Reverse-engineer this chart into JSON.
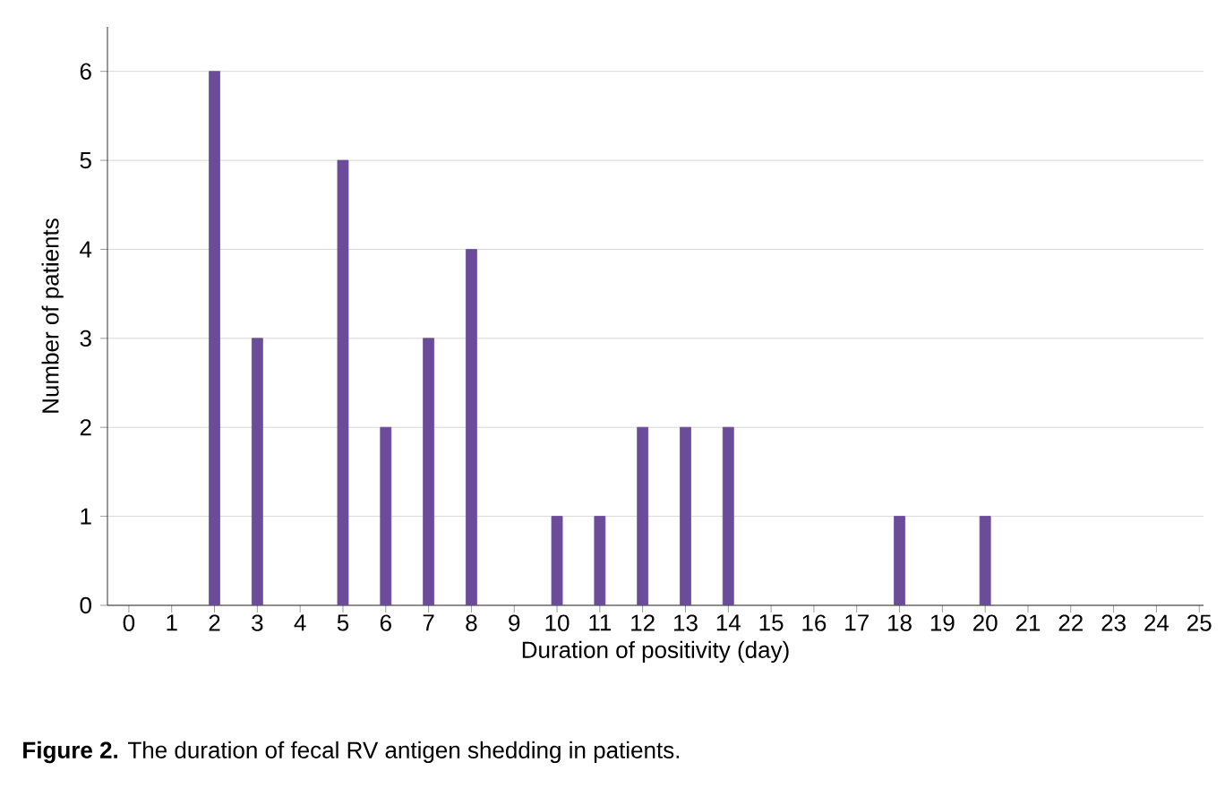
{
  "chart_data": {
    "type": "bar",
    "xlabel": "Duration of positivity (day)",
    "ylabel": "Number of patients",
    "x": [
      2,
      3,
      5,
      6,
      7,
      8,
      10,
      11,
      12,
      13,
      14,
      18,
      20
    ],
    "values": [
      6,
      3,
      5,
      2,
      3,
      4,
      1,
      1,
      2,
      2,
      2,
      1,
      1
    ],
    "color": "#6b4c9a",
    "xlim": [
      -0.5,
      25.1
    ],
    "xticks": [
      0,
      1,
      2,
      3,
      4,
      5,
      6,
      7,
      8,
      9,
      10,
      11,
      12,
      13,
      14,
      15,
      16,
      17,
      18,
      19,
      20,
      21,
      22,
      23,
      24,
      25
    ],
    "ylim": [
      0,
      6.5
    ],
    "yticks": [
      0,
      1,
      2,
      3,
      4,
      5,
      6
    ],
    "grid": "y",
    "annotations": [
      "**Figure 2.** The duration of fecal RV antigen shedding in patients."
    ]
  }
}
